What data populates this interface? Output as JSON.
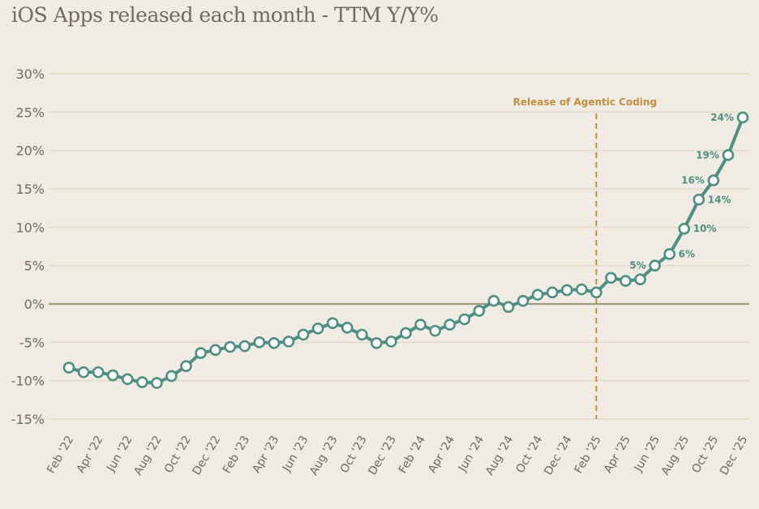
{
  "chart_data": {
    "type": "line",
    "title": "iOS Apps released each month - TTM Y/Y%",
    "xlabel": "",
    "ylabel": "",
    "ylim": [
      -15,
      30
    ],
    "yticks": [
      30,
      25,
      20,
      15,
      10,
      5,
      0,
      -5,
      -10,
      -15
    ],
    "ytick_labels": [
      "30%",
      "25%",
      "20%",
      "15%",
      "10%",
      "5%",
      "0%",
      "-5%",
      "-10%",
      "-15%"
    ],
    "x_tick_labels": [
      "Feb '22",
      "Apr '22",
      "Jun '22",
      "Aug '22",
      "Oct '22",
      "Dec '22",
      "Feb '23",
      "Apr '23",
      "Jun '23",
      "Aug '23",
      "Oct '23",
      "Dec '23",
      "Feb '24",
      "Apr '24",
      "Jun '24",
      "Aug '24",
      "Oct '24",
      "Dec '24",
      "Feb '25",
      "Apr '25",
      "Jun '25",
      "Aug '25",
      "Oct '25",
      "Dec '25"
    ],
    "x_tick_every": 2,
    "months": [
      "Feb '22",
      "Mar '22",
      "Apr '22",
      "May '22",
      "Jun '22",
      "Jul '22",
      "Aug '22",
      "Sep '22",
      "Oct '22",
      "Nov '22",
      "Dec '22",
      "Jan '23",
      "Feb '23",
      "Mar '23",
      "Apr '23",
      "May '23",
      "Jun '23",
      "Jul '23",
      "Aug '23",
      "Sep '23",
      "Oct '23",
      "Nov '23",
      "Dec '23",
      "Jan '24",
      "Feb '24",
      "Mar '24",
      "Apr '24",
      "May '24",
      "Jun '24",
      "Jul '24",
      "Aug '24",
      "Sep '24",
      "Oct '24",
      "Nov '24",
      "Dec '24",
      "Jan '25",
      "Feb '25",
      "Mar '25",
      "Apr '25",
      "May '25",
      "Jun '25",
      "Jul '25",
      "Aug '25",
      "Sep '25",
      "Oct '25",
      "Nov '25",
      "Dec '25"
    ],
    "series": [
      {
        "name": "TTM Y/Y%",
        "color": "#4f8e82",
        "values": [
          -8.3,
          -8.9,
          -8.9,
          -9.3,
          -9.8,
          -10.2,
          -10.3,
          -9.4,
          -8.1,
          -6.4,
          -6.0,
          -5.6,
          -5.5,
          -5.0,
          -5.1,
          -4.9,
          -4.0,
          -3.2,
          -2.5,
          -3.1,
          -4.0,
          -5.1,
          -4.9,
          -3.8,
          -2.7,
          -3.5,
          -2.7,
          -2.0,
          -0.9,
          0.4,
          -0.4,
          0.4,
          1.2,
          1.5,
          1.8,
          1.9,
          1.5,
          3.4,
          3.0,
          3.2,
          5.0,
          6.5,
          9.8,
          13.6,
          16.1,
          19.4,
          24.3
        ]
      }
    ],
    "data_labels": [
      {
        "index": 40,
        "text": "5%",
        "position": "left"
      },
      {
        "index": 41,
        "text": "6%",
        "position": "right"
      },
      {
        "index": 42,
        "text": "10%",
        "position": "right"
      },
      {
        "index": 43,
        "text": "14%",
        "position": "right"
      },
      {
        "index": 44,
        "text": "16%",
        "position": "left"
      },
      {
        "index": 45,
        "text": "19%",
        "position": "left"
      },
      {
        "index": 46,
        "text": "24%",
        "position": "left"
      }
    ],
    "reference_line": {
      "value": 0,
      "color": "#a09a80"
    },
    "annotation": {
      "text": "Release of Agentic Coding",
      "at": "Feb '25",
      "color": "#c09040",
      "style": "dashed"
    },
    "grid": true,
    "background": "#f0ece4"
  }
}
